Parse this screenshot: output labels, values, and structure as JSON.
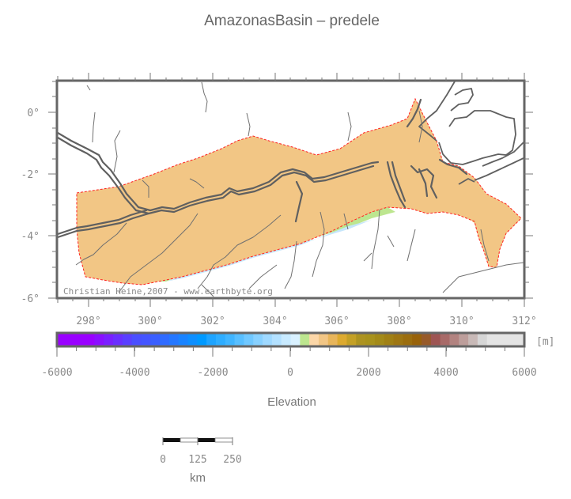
{
  "title": "AmazonasBasin – predele",
  "map": {
    "credit": "Christian Heine,2007 - www.earthbyte.org",
    "lon_ticks": [
      "298°",
      "300°",
      "302°",
      "304°",
      "306°",
      "308°",
      "310°",
      "312°"
    ],
    "lat_ticks": [
      "0°",
      "-2°",
      "-4°",
      "-6°"
    ],
    "lon_range": [
      297,
      312
    ],
    "lat_range": [
      -6,
      1
    ],
    "boundary_color": "#ff2020",
    "coastline_color": "#606060"
  },
  "colorbar": {
    "label": "Elevation",
    "unit": "[m]",
    "ticks": [
      "-6000",
      "-4000",
      "-2000",
      "0",
      "2000",
      "4000",
      "6000"
    ],
    "range": [
      -6000,
      6000
    ],
    "colors": [
      "#9900ff",
      "#9900ff",
      "#9900ff",
      "#9900ff",
      "#8a0fff",
      "#7a1fff",
      "#6a2fff",
      "#5a3fff",
      "#4a4fff",
      "#4455ff",
      "#3a5fff",
      "#2f6bff",
      "#2477ff",
      "#1983ff",
      "#0e8fff",
      "#0099ff",
      "#1ea4ff",
      "#2eadff",
      "#40b5ff",
      "#58bfff",
      "#70c8ff",
      "#88d1ff",
      "#9fd9ff",
      "#b3e1ff",
      "#c8eaff",
      "#d9f1ff",
      "#bde68f",
      "#fcd7a8",
      "#f2c685",
      "#e8b55a",
      "#ddaa2f",
      "#c4a025",
      "#ad9320",
      "#a8921c",
      "#a38a18",
      "#a08014",
      "#9e7612",
      "#9b6d0e",
      "#98620a",
      "#975a29",
      "#9e5553",
      "#a86a68",
      "#b28380",
      "#bd9e9b",
      "#c8b9b7",
      "#d6d6d6",
      "#e4e4e4",
      "#e4e4e4",
      "#e4e4e4",
      "#e4e4e4"
    ]
  },
  "scalebar": {
    "ticks": [
      "0",
      "125",
      "250"
    ],
    "unit": "km"
  }
}
